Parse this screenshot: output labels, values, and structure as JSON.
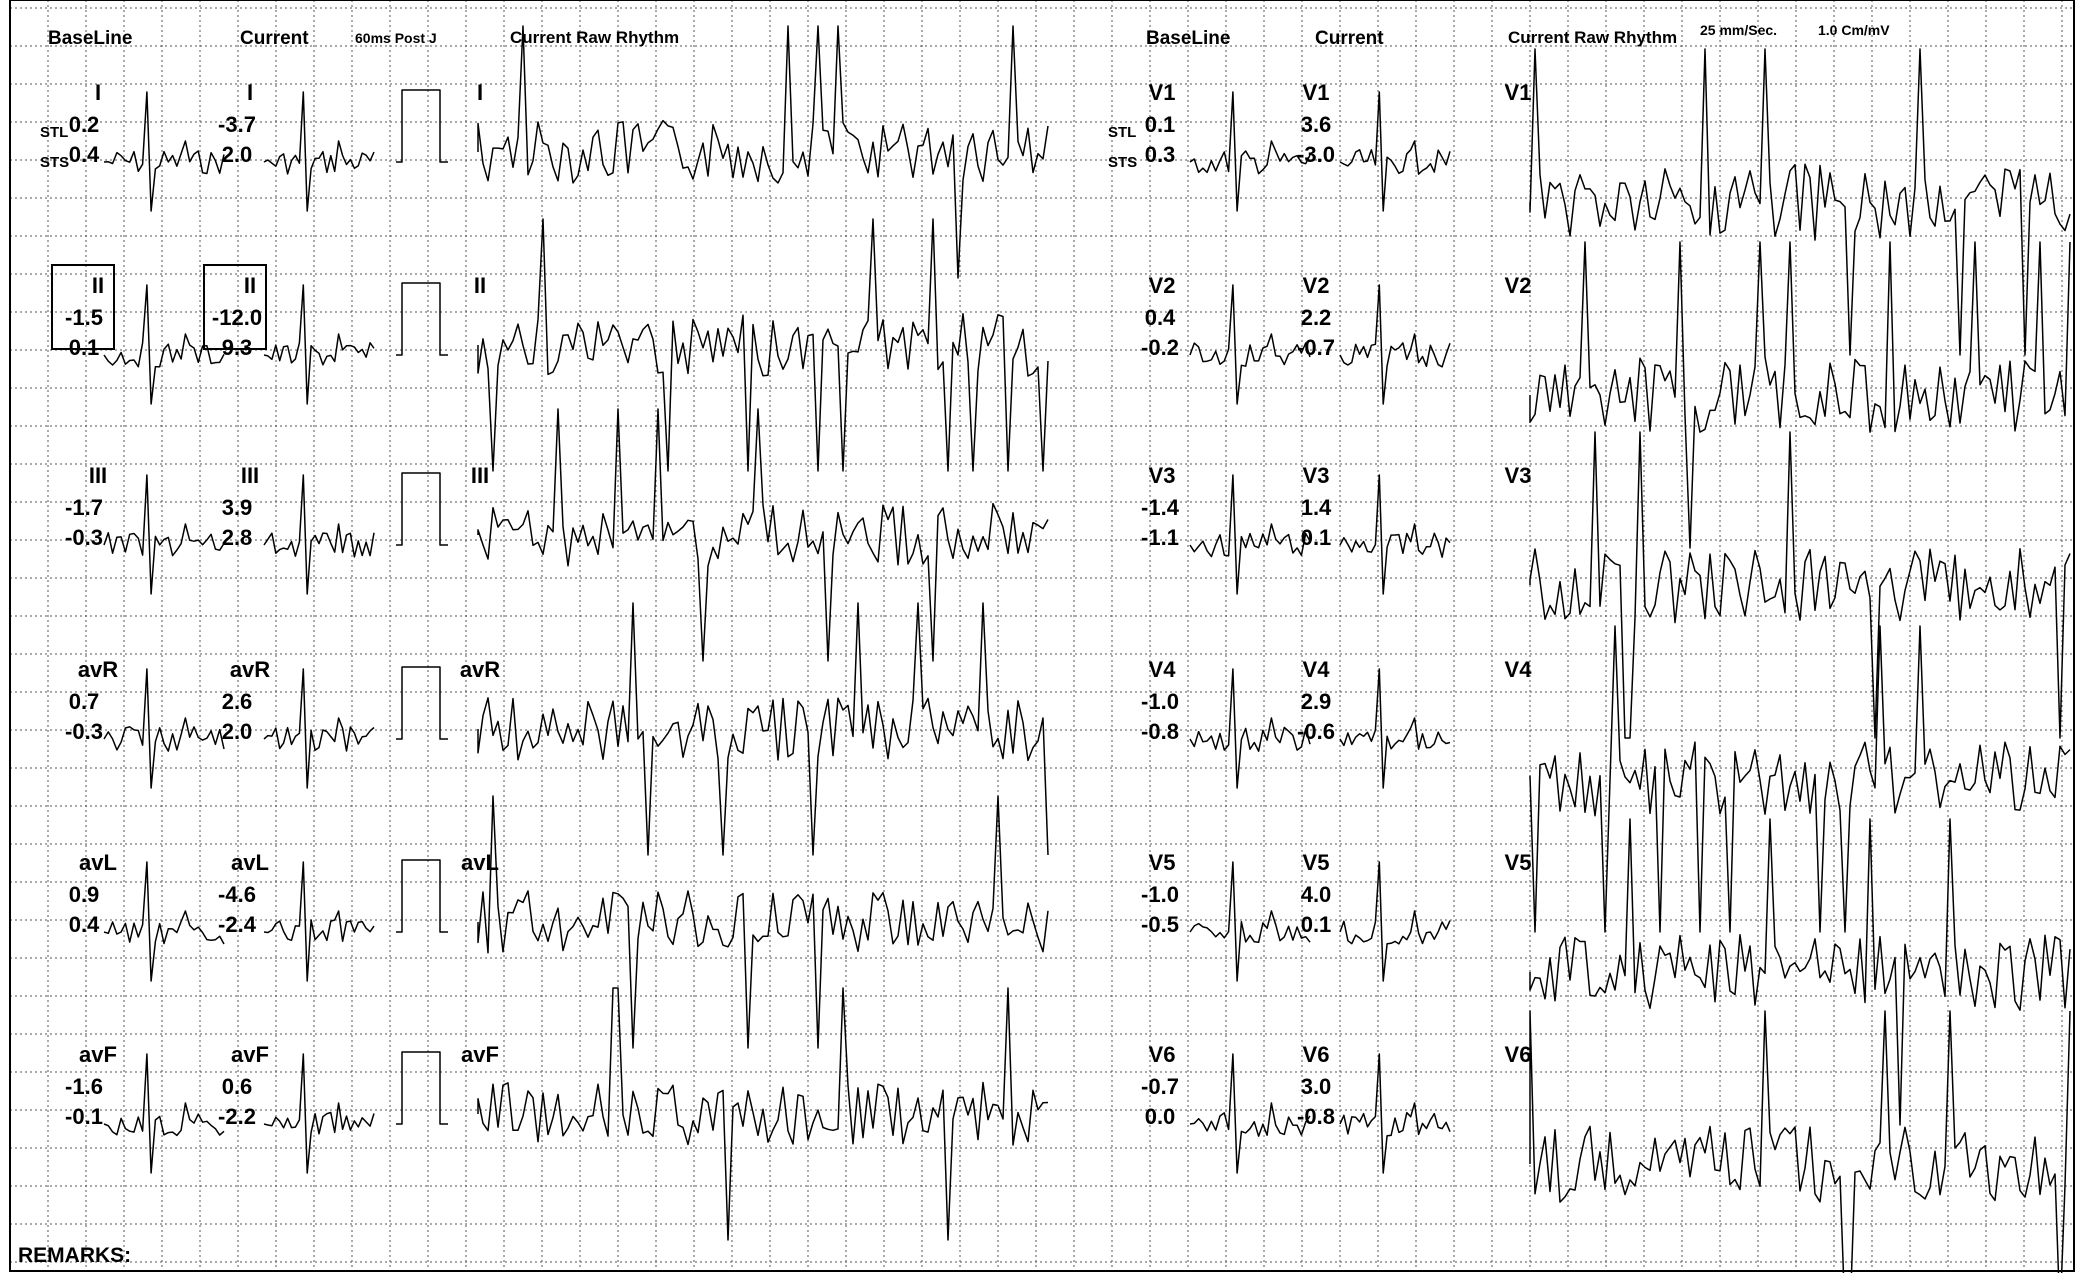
{
  "headers": {
    "baseline_left": "BaseLine",
    "current_left": "Current",
    "post_j": "60ms Post J",
    "raw_rhythm_left": "Current Raw Rhythm",
    "baseline_right": "BaseLine",
    "current_right": "Current",
    "raw_rhythm_right": "Current Raw Rhythm",
    "speed": "25 mm/Sec.",
    "gain": "1.0 Cm/mV"
  },
  "row_labels": {
    "stl": "STL",
    "sts": "STS"
  },
  "leads_left": [
    {
      "name": "I",
      "baseline": [
        "0.2",
        "0.4"
      ],
      "current": [
        "-3.7",
        "2.0"
      ]
    },
    {
      "name": "II",
      "baseline": [
        "-1.5",
        "0.1"
      ],
      "current": [
        "-12.0",
        "9.3"
      ]
    },
    {
      "name": "III",
      "baseline": [
        "-1.7",
        "-0.3"
      ],
      "current": [
        "3.9",
        "2.8"
      ]
    },
    {
      "name": "avR",
      "baseline": [
        "0.7",
        "-0.3"
      ],
      "current": [
        "2.6",
        "2.0"
      ]
    },
    {
      "name": "avL",
      "baseline": [
        "0.9",
        "0.4"
      ],
      "current": [
        "-4.6",
        "-2.4"
      ]
    },
    {
      "name": "avF",
      "baseline": [
        "-1.6",
        "-0.1"
      ],
      "current": [
        "0.6",
        "-2.2"
      ]
    }
  ],
  "leads_right": [
    {
      "name": "V1",
      "baseline": [
        "0.1",
        "0.3"
      ],
      "current": [
        "3.6",
        "-3.0"
      ]
    },
    {
      "name": "V2",
      "baseline": [
        "0.4",
        "-0.2"
      ],
      "current": [
        "2.2",
        "-0.7"
      ]
    },
    {
      "name": "V3",
      "baseline": [
        "-1.4",
        "-1.1"
      ],
      "current": [
        "1.4",
        "0.1"
      ]
    },
    {
      "name": "V4",
      "baseline": [
        "-1.0",
        "-0.8"
      ],
      "current": [
        "2.9",
        "-0.6"
      ]
    },
    {
      "name": "V5",
      "baseline": [
        "-1.0",
        "-0.5"
      ],
      "current": [
        "4.0",
        "0.1"
      ]
    },
    {
      "name": "V6",
      "baseline": [
        "-0.7",
        "0.0"
      ],
      "current": [
        "3.0",
        "-0.8"
      ]
    }
  ],
  "remarks_label": "REMARKS:"
}
